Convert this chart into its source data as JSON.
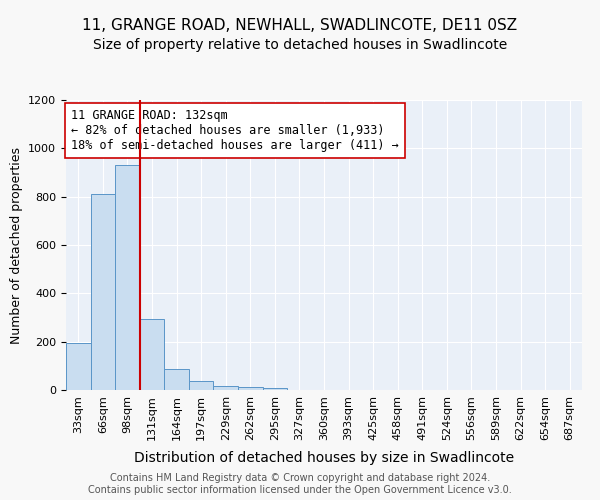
{
  "title": "11, GRANGE ROAD, NEWHALL, SWADLINCOTE, DE11 0SZ",
  "subtitle": "Size of property relative to detached houses in Swadlincote",
  "xlabel": "Distribution of detached houses by size in Swadlincote",
  "ylabel": "Number of detached properties",
  "bar_values": [
    196,
    810,
    930,
    295,
    85,
    37,
    18,
    12,
    10,
    0,
    0,
    0,
    0,
    0,
    0,
    0,
    0,
    0,
    0,
    0,
    0
  ],
  "bin_labels": [
    "33sqm",
    "66sqm",
    "98sqm",
    "131sqm",
    "164sqm",
    "197sqm",
    "229sqm",
    "262sqm",
    "295sqm",
    "327sqm",
    "360sqm",
    "393sqm",
    "425sqm",
    "458sqm",
    "491sqm",
    "524sqm",
    "556sqm",
    "589sqm",
    "622sqm",
    "654sqm",
    "687sqm"
  ],
  "bar_color": "#c9ddf0",
  "bar_edge_color": "#5a95c8",
  "background_color": "#eaf0f8",
  "grid_color": "#ffffff",
  "property_line_color": "#cc0000",
  "annotation_text": "11 GRANGE ROAD: 132sqm\n← 82% of detached houses are smaller (1,933)\n18% of semi-detached houses are larger (411) →",
  "annotation_box_color": "#ffffff",
  "annotation_box_edge": "#cc0000",
  "ylim": [
    0,
    1200
  ],
  "yticks": [
    0,
    200,
    400,
    600,
    800,
    1000,
    1200
  ],
  "footer_text": "Contains HM Land Registry data © Crown copyright and database right 2024.\nContains public sector information licensed under the Open Government Licence v3.0.",
  "title_fontsize": 11,
  "subtitle_fontsize": 10,
  "xlabel_fontsize": 10,
  "ylabel_fontsize": 9,
  "tick_fontsize": 8,
  "annotation_fontsize": 8.5,
  "footer_fontsize": 7
}
